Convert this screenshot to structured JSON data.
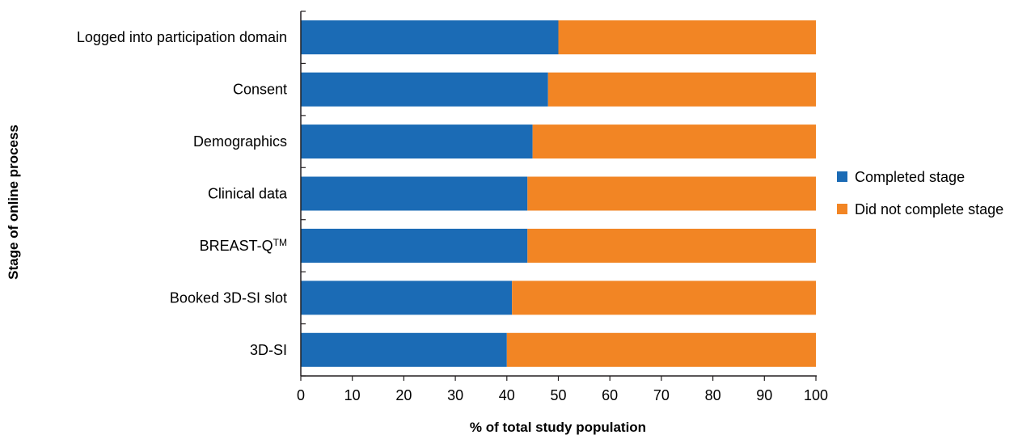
{
  "chart_data": {
    "type": "bar",
    "orientation": "horizontal",
    "stacked": true,
    "categories": [
      "Logged into participation domain",
      "Consent",
      "Demographics",
      "Clinical data",
      "BREAST-Q™",
      "Booked 3D-SI slot",
      "3D-SI"
    ],
    "series": [
      {
        "name": "Completed stage",
        "values": [
          50,
          48,
          45,
          44,
          44,
          41,
          40
        ]
      },
      {
        "name": "Did not complete stage",
        "values": [
          50,
          52,
          55,
          56,
          56,
          59,
          60
        ]
      }
    ],
    "colors": {
      "completed": "#1b6bb5",
      "not_completed": "#f28524"
    },
    "xlabel": "% of total study population",
    "ylabel": "Stage of online process",
    "xlim": [
      0,
      100
    ],
    "x_ticks": [
      "0",
      "10",
      "20",
      "30",
      "40",
      "50",
      "60",
      "70",
      "80",
      "90",
      "100"
    ],
    "grid": false,
    "legend_position": "right"
  }
}
